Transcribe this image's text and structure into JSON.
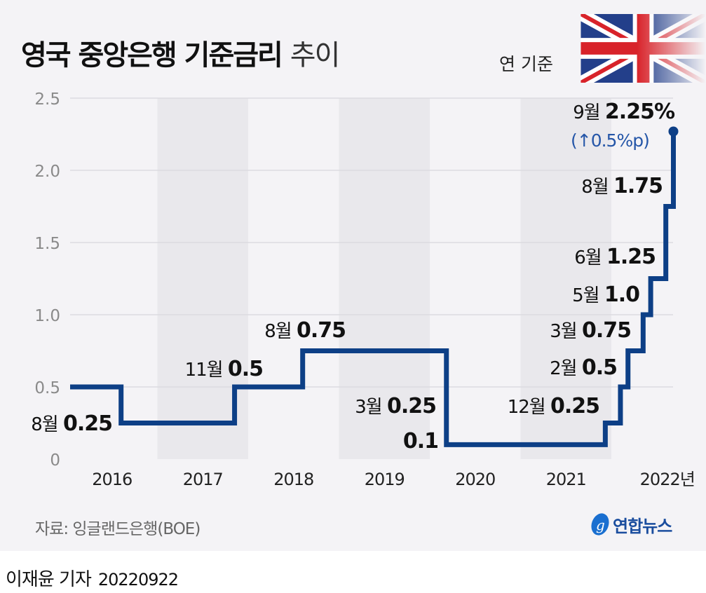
{
  "title": {
    "bold": "영국 중앙은행 기준금리",
    "light": "추이"
  },
  "unit": "연 기준",
  "source": "자료: 잉글랜드은행(BOE)",
  "logo": "연합뉴스",
  "byline": {
    "reporter": "이재윤 기자",
    "date": "20220922"
  },
  "colors": {
    "line": "#0d3f86",
    "change": "#2556a8",
    "band": "#e9e8ec",
    "bg": "#f4f3f6"
  },
  "chart_data": {
    "type": "line",
    "step": true,
    "title": "영국 중앙은행 기준금리 추이",
    "ylabel": "연 기준",
    "ylim": [
      0,
      2.5
    ],
    "yticks": [
      "0",
      "0.5",
      "1.0",
      "1.5",
      "2.0",
      "2.5"
    ],
    "xticks": [
      "2016",
      "2017",
      "2018",
      "2019",
      "2020",
      "2021",
      "2022년"
    ],
    "grid": true,
    "shaded_years": [
      "2017",
      "2019",
      "2021"
    ],
    "start": {
      "date": "2016-01",
      "value": 0.5
    },
    "points": [
      {
        "date": "2016-08",
        "value": 0.25,
        "month": "8월",
        "label": "0.25"
      },
      {
        "date": "2017-11",
        "value": 0.5,
        "month": "11월",
        "label": "0.5"
      },
      {
        "date": "2018-08",
        "value": 0.75,
        "month": "8월",
        "label": "0.75"
      },
      {
        "date": "2020-03",
        "value": 0.25,
        "month": "3월",
        "label": "0.25"
      },
      {
        "date": "2020-03",
        "value": 0.1,
        "month": "",
        "label": "0.1"
      },
      {
        "date": "2021-12",
        "value": 0.25,
        "month": "12월",
        "label": "0.25"
      },
      {
        "date": "2022-02",
        "value": 0.5,
        "month": "2월",
        "label": "0.5"
      },
      {
        "date": "2022-03",
        "value": 0.75,
        "month": "3월",
        "label": "0.75"
      },
      {
        "date": "2022-05",
        "value": 1.0,
        "month": "5월",
        "label": "1.0"
      },
      {
        "date": "2022-06",
        "value": 1.25,
        "month": "6월",
        "label": "1.25"
      },
      {
        "date": "2022-08",
        "value": 1.75,
        "month": "8월",
        "label": "1.75"
      },
      {
        "date": "2022-09",
        "value": 2.25,
        "month": "9월",
        "label": "2.25%"
      }
    ],
    "annotation": "(↑0.5%p)"
  }
}
